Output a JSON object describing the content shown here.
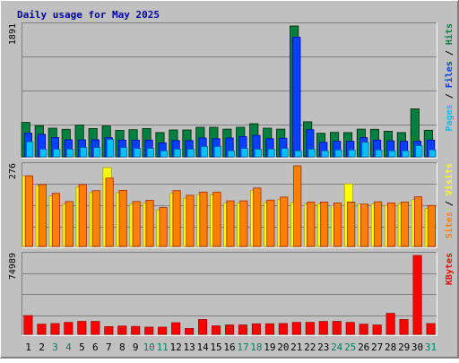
{
  "chart_data": {
    "type": "bar",
    "title": "Daily usage for May 2025",
    "categories": [
      "1",
      "2",
      "3",
      "4",
      "5",
      "6",
      "7",
      "8",
      "9",
      "10",
      "11",
      "12",
      "13",
      "14",
      "15",
      "16",
      "17",
      "18",
      "19",
      "20",
      "21",
      "22",
      "23",
      "24",
      "25",
      "26",
      "27",
      "28",
      "29",
      "30",
      "31"
    ],
    "weekend_categories": [
      "3",
      "4",
      "10",
      "11",
      "17",
      "18",
      "24",
      "25",
      "31"
    ],
    "panels": [
      {
        "id": "hits",
        "ymax": 1891,
        "ymax_label": "1891",
        "series": [
          {
            "name": "Hits",
            "color": "#008040",
            "values": [
              497,
              451,
              414,
              397,
              458,
              409,
              446,
              382,
              393,
              409,
              351,
              388,
              388,
              427,
              427,
              400,
              427,
              479,
              414,
              400,
              1891,
              506,
              340,
              354,
              351,
              400,
              397,
              370,
              351,
              694,
              385
            ]
          },
          {
            "name": "Files",
            "color": "#0040ff",
            "values": [
              343,
              325,
              278,
              246,
              246,
              246,
              278,
              242,
              242,
              242,
              202,
              236,
              235,
              272,
              262,
              272,
              293,
              310,
              262,
              270,
              1731,
              393,
              210,
              225,
              225,
              278,
              242,
              230,
              225,
              225,
              242
            ]
          },
          {
            "name": "Pages",
            "color": "#00c0ff",
            "values": [
              218,
              112,
              112,
              112,
              135,
              135,
              250,
              135,
              122,
              122,
              87,
              112,
              112,
              149,
              149,
              87,
              122,
              112,
              112,
              122,
              87,
              112,
              87,
              100,
              100,
              210,
              100,
              87,
              87,
              160,
              100
            ]
          }
        ],
        "legend_order": [
          "Pages",
          "Files",
          "Hits"
        ]
      },
      {
        "id": "visits",
        "ymax": 276,
        "ymax_label": "276",
        "series": [
          {
            "name": "Visits",
            "color": "#ffff00",
            "values": [
              242,
              208,
              173,
              145,
              204,
              184,
              270,
              184,
              145,
              149,
              125,
              182,
              165,
              177,
              177,
              148,
              148,
              192,
              150,
              160,
              150,
              145,
              145,
              140,
              214,
              145,
              145,
              140,
              145,
              160,
              130
            ]
          },
          {
            "name": "Sites",
            "color": "#ff8000",
            "values": [
              242,
              212,
              182,
              154,
              212,
              191,
              234,
              192,
              154,
              158,
              133,
              191,
              175,
              186,
              186,
              156,
              156,
              200,
              159,
              169,
              276,
              152,
              152,
              149,
              152,
              145,
              153,
              149,
              152,
              170,
              140
            ]
          }
        ],
        "legend_order": [
          "Sites",
          "Visits"
        ]
      },
      {
        "id": "kbytes",
        "ymax": 74989,
        "ymax_label": "74989",
        "series": [
          {
            "name": "KBytes",
            "color": "#ff0000",
            "values": [
              17800,
              9600,
              10200,
              11300,
              12300,
              12300,
              7300,
              7800,
              7500,
              6800,
              6800,
              11000,
              5500,
              14100,
              8000,
              8900,
              8900,
              10000,
              10000,
              10200,
              11300,
              11300,
              12300,
              12300,
              11300,
              9600,
              8900,
              19900,
              14100,
              74989,
              10200
            ]
          }
        ],
        "legend_order": [
          "KBytes"
        ]
      }
    ]
  }
}
